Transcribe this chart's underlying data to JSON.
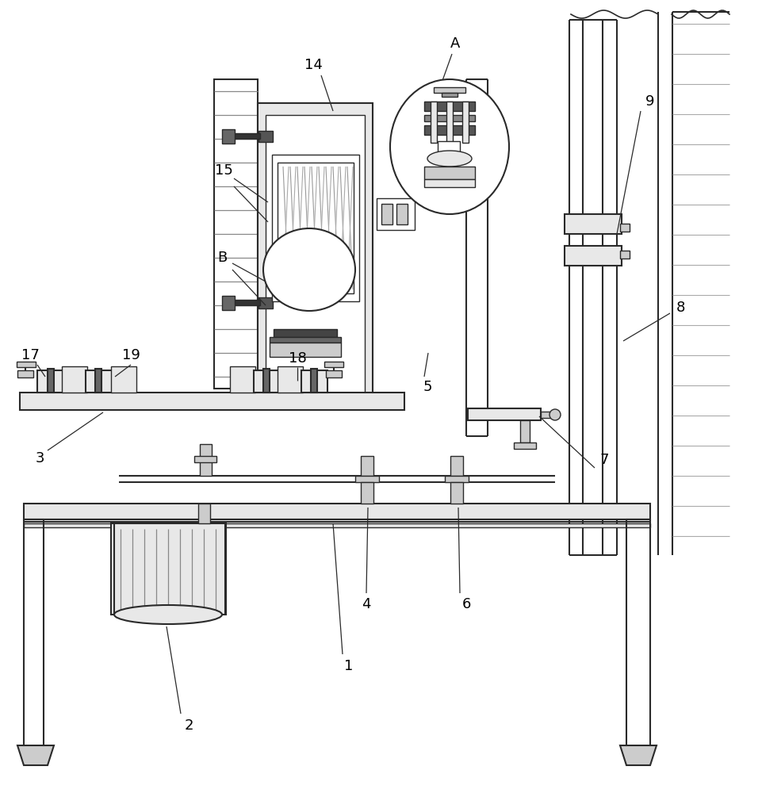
{
  "bg_color": "#ffffff",
  "lc": "#2a2a2a",
  "gray1": "#cccccc",
  "gray2": "#888888",
  "gray3": "#444444",
  "white": "#ffffff",
  "lgray": "#e8e8e8"
}
